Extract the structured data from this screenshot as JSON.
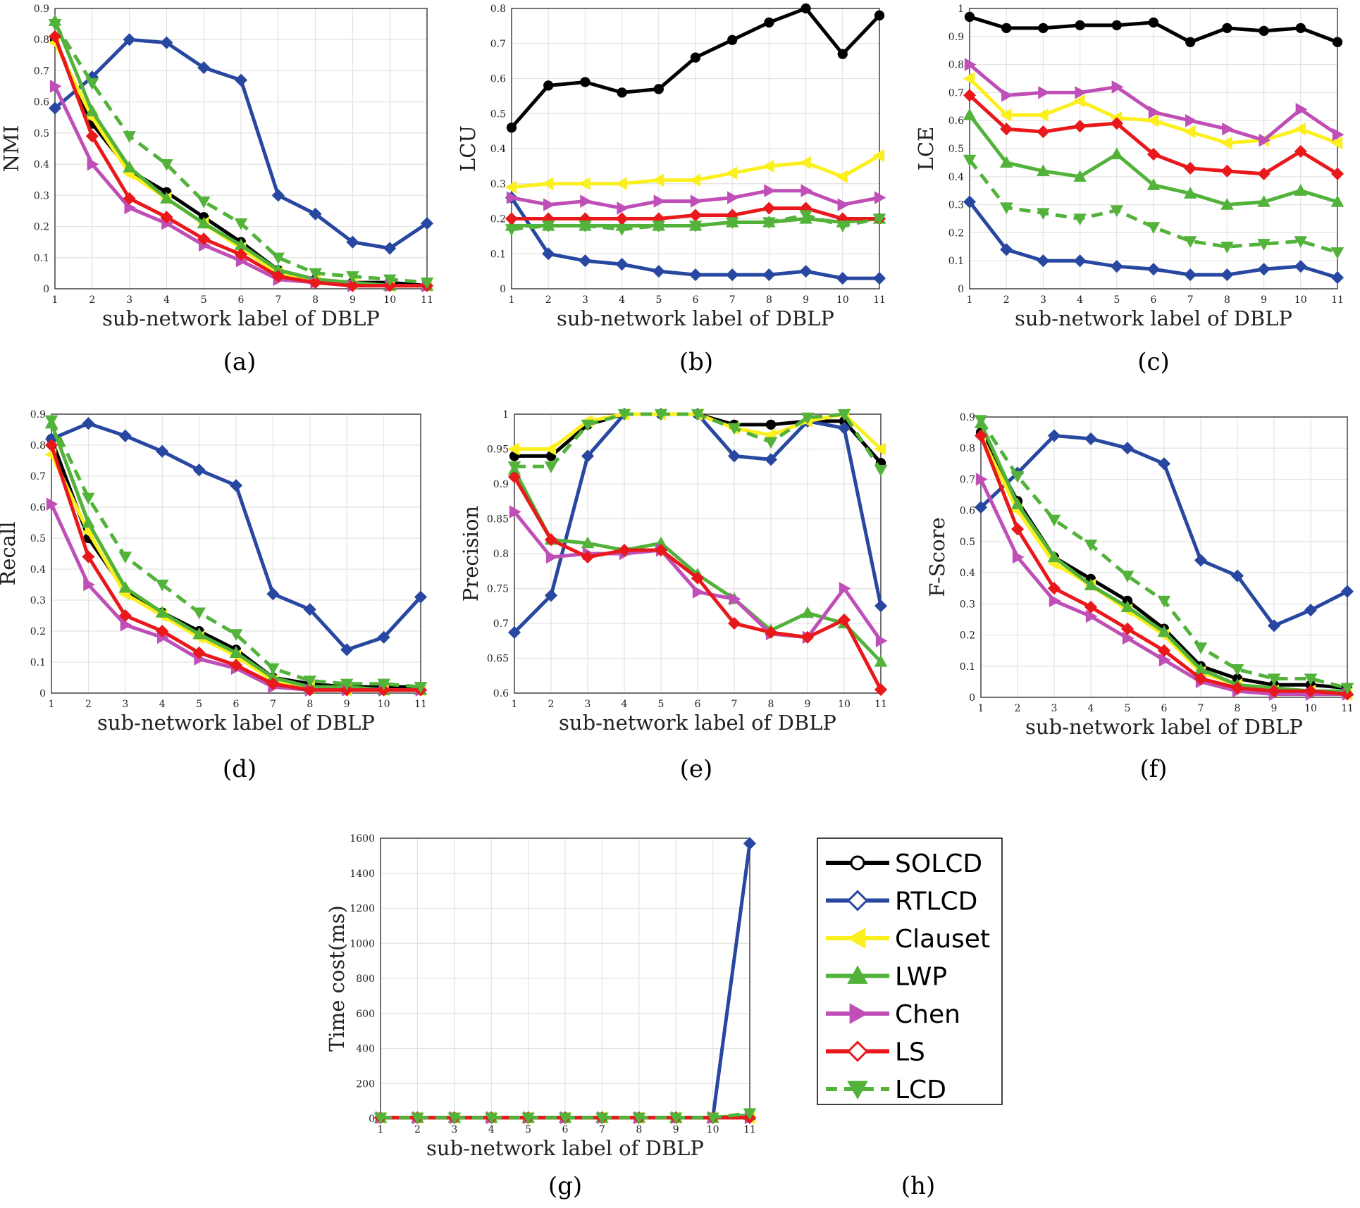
{
  "series_styles": {
    "SOLCD": {
      "color": "#000000",
      "marker": "circle",
      "dash": false
    },
    "RTLCD": {
      "color": "#2747a0",
      "marker": "diamond",
      "dash": false
    },
    "Clauset": {
      "color": "#fbef1e",
      "marker": "triangle-left",
      "dash": false
    },
    "LWP": {
      "color": "#52b23a",
      "marker": "triangle-up",
      "dash": false
    },
    "Chen": {
      "color": "#bf4fb6",
      "marker": "triangle-right",
      "dash": false
    },
    "LS": {
      "color": "#e8181b",
      "marker": "diamond",
      "dash": false
    },
    "LCD": {
      "color": "#52b23a",
      "marker": "triangle-down",
      "dash": true
    }
  },
  "legend": {
    "entries": [
      "SOLCD",
      "RTLCD",
      "Clauset",
      "LWP",
      "Chen",
      "LS",
      "LCD"
    ]
  },
  "panel_labels": {
    "h": "(h)"
  },
  "chart_data": [
    {
      "id": "a",
      "type": "line",
      "caption": "(a)",
      "xlabel": "sub-network label of DBLP",
      "ylabel": "NMI",
      "x": [
        1,
        2,
        3,
        4,
        5,
        6,
        7,
        8,
        9,
        10,
        11
      ],
      "ylim": [
        0,
        0.9
      ],
      "yticks": [
        0,
        0.1,
        0.2,
        0.3,
        0.4,
        0.5,
        0.6,
        0.7,
        0.8,
        0.9
      ],
      "ytick_labels": [
        "0",
        "0.1",
        "0.2",
        "0.3",
        "0.4",
        "0.5",
        "0.6",
        "0.7",
        "0.8",
        "0.9"
      ],
      "series": [
        {
          "name": "SOLCD",
          "values": [
            0.8,
            0.53,
            0.38,
            0.31,
            0.23,
            0.15,
            0.06,
            0.03,
            0.02,
            0.02,
            0.01
          ]
        },
        {
          "name": "RTLCD",
          "values": [
            0.58,
            0.68,
            0.8,
            0.79,
            0.71,
            0.67,
            0.3,
            0.24,
            0.15,
            0.13,
            0.21
          ]
        },
        {
          "name": "Clauset",
          "values": [
            0.79,
            0.55,
            0.37,
            0.29,
            0.21,
            0.13,
            0.05,
            0.03,
            0.02,
            0.01,
            0.01
          ]
        },
        {
          "name": "LWP",
          "values": [
            0.86,
            0.57,
            0.39,
            0.29,
            0.21,
            0.14,
            0.06,
            0.03,
            0.02,
            0.01,
            0.01
          ]
        },
        {
          "name": "Chen",
          "values": [
            0.65,
            0.4,
            0.26,
            0.21,
            0.14,
            0.09,
            0.03,
            0.02,
            0.01,
            0.01,
            0.01
          ]
        },
        {
          "name": "LS",
          "values": [
            0.81,
            0.49,
            0.29,
            0.23,
            0.16,
            0.11,
            0.04,
            0.02,
            0.01,
            0.01,
            0.01
          ]
        },
        {
          "name": "LCD",
          "values": [
            0.85,
            0.66,
            0.49,
            0.4,
            0.28,
            0.21,
            0.1,
            0.05,
            0.04,
            0.03,
            0.02
          ]
        }
      ]
    },
    {
      "id": "b",
      "type": "line",
      "caption": "(b)",
      "xlabel": "sub-network label of DBLP",
      "ylabel": "LCU",
      "x": [
        1,
        2,
        3,
        4,
        5,
        6,
        7,
        8,
        9,
        10,
        11
      ],
      "ylim": [
        0,
        0.8
      ],
      "yticks": [
        0,
        0.1,
        0.2,
        0.3,
        0.4,
        0.5,
        0.6,
        0.7,
        0.8
      ],
      "ytick_labels": [
        "0",
        "0.1",
        "0.2",
        "0.3",
        "0.4",
        "0.5",
        "0.6",
        "0.7",
        "0.8"
      ],
      "series": [
        {
          "name": "SOLCD",
          "values": [
            0.46,
            0.58,
            0.59,
            0.56,
            0.57,
            0.66,
            0.71,
            0.76,
            0.8,
            0.67,
            0.78
          ]
        },
        {
          "name": "RTLCD",
          "values": [
            0.26,
            0.1,
            0.08,
            0.07,
            0.05,
            0.04,
            0.04,
            0.04,
            0.05,
            0.03,
            0.03
          ]
        },
        {
          "name": "Clauset",
          "values": [
            0.29,
            0.3,
            0.3,
            0.3,
            0.31,
            0.31,
            0.33,
            0.35,
            0.36,
            0.32,
            0.38
          ]
        },
        {
          "name": "LWP",
          "values": [
            0.18,
            0.18,
            0.18,
            0.18,
            0.18,
            0.18,
            0.19,
            0.19,
            0.2,
            0.19,
            0.2
          ]
        },
        {
          "name": "Chen",
          "values": [
            0.26,
            0.24,
            0.25,
            0.23,
            0.25,
            0.25,
            0.26,
            0.28,
            0.28,
            0.24,
            0.26
          ]
        },
        {
          "name": "LS",
          "values": [
            0.2,
            0.2,
            0.2,
            0.2,
            0.2,
            0.21,
            0.21,
            0.23,
            0.23,
            0.2,
            0.2
          ]
        },
        {
          "name": "LCD",
          "values": [
            0.17,
            0.18,
            0.18,
            0.17,
            0.18,
            0.18,
            0.19,
            0.19,
            0.21,
            0.18,
            0.2
          ]
        }
      ]
    },
    {
      "id": "c",
      "type": "line",
      "caption": "(c)",
      "xlabel": "sub-network label of DBLP",
      "ylabel": "LCE",
      "x": [
        1,
        2,
        3,
        4,
        5,
        6,
        7,
        8,
        9,
        10,
        11
      ],
      "ylim": [
        0,
        1
      ],
      "yticks": [
        0,
        0.1,
        0.2,
        0.3,
        0.4,
        0.5,
        0.6,
        0.7,
        0.8,
        0.9,
        1
      ],
      "ytick_labels": [
        "0",
        "0.1",
        "0.2",
        "0.3",
        "0.4",
        "0.5",
        "0.6",
        "0.7",
        "0.8",
        "0.9",
        "1"
      ],
      "series": [
        {
          "name": "SOLCD",
          "values": [
            0.97,
            0.93,
            0.93,
            0.94,
            0.94,
            0.95,
            0.88,
            0.93,
            0.92,
            0.93,
            0.88
          ]
        },
        {
          "name": "RTLCD",
          "values": [
            0.31,
            0.14,
            0.1,
            0.1,
            0.08,
            0.07,
            0.05,
            0.05,
            0.07,
            0.08,
            0.04
          ]
        },
        {
          "name": "Clauset",
          "values": [
            0.75,
            0.62,
            0.62,
            0.67,
            0.61,
            0.6,
            0.56,
            0.52,
            0.53,
            0.57,
            0.52
          ]
        },
        {
          "name": "LWP",
          "values": [
            0.62,
            0.45,
            0.42,
            0.4,
            0.48,
            0.37,
            0.34,
            0.3,
            0.31,
            0.35,
            0.31
          ]
        },
        {
          "name": "Chen",
          "values": [
            0.8,
            0.69,
            0.7,
            0.7,
            0.72,
            0.63,
            0.6,
            0.57,
            0.53,
            0.64,
            0.55
          ]
        },
        {
          "name": "LS",
          "values": [
            0.69,
            0.57,
            0.56,
            0.58,
            0.59,
            0.48,
            0.43,
            0.42,
            0.41,
            0.49,
            0.41
          ]
        },
        {
          "name": "LCD",
          "values": [
            0.46,
            0.29,
            0.27,
            0.25,
            0.28,
            0.22,
            0.17,
            0.15,
            0.16,
            0.17,
            0.13
          ]
        }
      ]
    },
    {
      "id": "d",
      "type": "line",
      "caption": "(d)",
      "xlabel": "sub-network label of DBLP",
      "ylabel": "Recall",
      "x": [
        1,
        2,
        3,
        4,
        5,
        6,
        7,
        8,
        9,
        10,
        11
      ],
      "ylim": [
        0,
        0.9
      ],
      "yticks": [
        0,
        0.1,
        0.2,
        0.3,
        0.4,
        0.5,
        0.6,
        0.7,
        0.8,
        0.9
      ],
      "ytick_labels": [
        "0",
        "0.1",
        "0.2",
        "0.3",
        "0.4",
        "0.5",
        "0.6",
        "0.7",
        "0.8",
        "0.9"
      ],
      "series": [
        {
          "name": "SOLCD",
          "values": [
            0.82,
            0.5,
            0.33,
            0.26,
            0.2,
            0.14,
            0.05,
            0.03,
            0.02,
            0.02,
            0.02
          ]
        },
        {
          "name": "RTLCD",
          "values": [
            0.82,
            0.87,
            0.83,
            0.78,
            0.72,
            0.67,
            0.32,
            0.27,
            0.14,
            0.18,
            0.31
          ]
        },
        {
          "name": "Clauset",
          "values": [
            0.77,
            0.52,
            0.32,
            0.25,
            0.18,
            0.12,
            0.04,
            0.02,
            0.01,
            0.01,
            0.01
          ]
        },
        {
          "name": "LWP",
          "values": [
            0.87,
            0.55,
            0.34,
            0.26,
            0.19,
            0.13,
            0.05,
            0.02,
            0.02,
            0.01,
            0.01
          ]
        },
        {
          "name": "Chen",
          "values": [
            0.61,
            0.35,
            0.22,
            0.18,
            0.11,
            0.08,
            0.02,
            0.01,
            0.01,
            0.01,
            0.01
          ]
        },
        {
          "name": "LS",
          "values": [
            0.8,
            0.44,
            0.25,
            0.2,
            0.13,
            0.09,
            0.03,
            0.01,
            0.01,
            0.01,
            0.01
          ]
        },
        {
          "name": "LCD",
          "values": [
            0.88,
            0.63,
            0.44,
            0.35,
            0.26,
            0.19,
            0.08,
            0.04,
            0.03,
            0.03,
            0.02
          ]
        }
      ]
    },
    {
      "id": "e",
      "type": "line",
      "caption": "(e)",
      "xlabel": "sub-network label of DBLP",
      "ylabel": "Precision",
      "x": [
        1,
        2,
        3,
        4,
        5,
        6,
        7,
        8,
        9,
        10,
        11
      ],
      "ylim": [
        0.6,
        1
      ],
      "yticks": [
        0.6,
        0.65,
        0.7,
        0.75,
        0.8,
        0.85,
        0.9,
        0.95,
        1
      ],
      "ytick_labels": [
        "0.6",
        "0.65",
        "0.7",
        "0.75",
        "0.8",
        "0.85",
        "0.9",
        "0.95",
        "1"
      ],
      "series": [
        {
          "name": "SOLCD",
          "values": [
            0.94,
            0.94,
            0.985,
            1.0,
            1.0,
            1.0,
            0.985,
            0.985,
            0.99,
            0.99,
            0.93
          ]
        },
        {
          "name": "RTLCD",
          "values": [
            0.687,
            0.74,
            0.94,
            1.0,
            1.0,
            1.0,
            0.94,
            0.935,
            0.99,
            0.98,
            0.725
          ]
        },
        {
          "name": "Clauset",
          "values": [
            0.95,
            0.95,
            0.99,
            1.0,
            1.0,
            1.0,
            0.98,
            0.97,
            0.99,
            1.0,
            0.95
          ]
        },
        {
          "name": "LWP",
          "values": [
            0.92,
            0.82,
            0.815,
            0.805,
            0.815,
            0.77,
            0.735,
            0.69,
            0.715,
            0.7,
            0.645
          ]
        },
        {
          "name": "Chen",
          "values": [
            0.86,
            0.795,
            0.8,
            0.8,
            0.805,
            0.745,
            0.735,
            0.685,
            0.68,
            0.75,
            0.675
          ]
        },
        {
          "name": "LS",
          "values": [
            0.91,
            0.82,
            0.795,
            0.805,
            0.805,
            0.765,
            0.7,
            0.687,
            0.68,
            0.705,
            0.605
          ]
        },
        {
          "name": "LCD",
          "values": [
            0.925,
            0.925,
            0.985,
            1.0,
            1.0,
            1.0,
            0.98,
            0.96,
            0.995,
            1.0,
            0.92
          ]
        }
      ]
    },
    {
      "id": "f",
      "type": "line",
      "caption": "(f)",
      "xlabel": "sub-network label of DBLP",
      "ylabel": "F-Score",
      "x": [
        1,
        2,
        3,
        4,
        5,
        6,
        7,
        8,
        9,
        10,
        11
      ],
      "ylim": [
        0,
        0.9
      ],
      "yticks": [
        0,
        0.1,
        0.2,
        0.3,
        0.4,
        0.5,
        0.6,
        0.7,
        0.8,
        0.9
      ],
      "ytick_labels": [
        "0",
        "0.1",
        "0.2",
        "0.3",
        "0.4",
        "0.5",
        "0.6",
        "0.7",
        "0.8",
        "0.9"
      ],
      "series": [
        {
          "name": "SOLCD",
          "values": [
            0.85,
            0.63,
            0.45,
            0.38,
            0.31,
            0.22,
            0.1,
            0.06,
            0.04,
            0.04,
            0.03
          ]
        },
        {
          "name": "RTLCD",
          "values": [
            0.61,
            0.72,
            0.84,
            0.83,
            0.8,
            0.75,
            0.44,
            0.39,
            0.23,
            0.28,
            0.34
          ]
        },
        {
          "name": "Clauset",
          "values": [
            0.84,
            0.6,
            0.43,
            0.36,
            0.28,
            0.2,
            0.08,
            0.04,
            0.02,
            0.02,
            0.01
          ]
        },
        {
          "name": "LWP",
          "values": [
            0.88,
            0.62,
            0.45,
            0.36,
            0.29,
            0.21,
            0.09,
            0.04,
            0.03,
            0.02,
            0.02
          ]
        },
        {
          "name": "Chen",
          "values": [
            0.7,
            0.45,
            0.31,
            0.26,
            0.19,
            0.12,
            0.05,
            0.02,
            0.01,
            0.01,
            0.01
          ]
        },
        {
          "name": "LS",
          "values": [
            0.84,
            0.54,
            0.35,
            0.29,
            0.22,
            0.15,
            0.06,
            0.03,
            0.02,
            0.02,
            0.01
          ]
        },
        {
          "name": "LCD",
          "values": [
            0.89,
            0.71,
            0.57,
            0.49,
            0.39,
            0.31,
            0.16,
            0.09,
            0.06,
            0.06,
            0.03
          ]
        }
      ]
    },
    {
      "id": "g",
      "type": "line",
      "caption": "(g)",
      "xlabel": "sub-network label of DBLP",
      "ylabel": "Time cost(ms)",
      "x": [
        1,
        2,
        3,
        4,
        5,
        6,
        7,
        8,
        9,
        10,
        11
      ],
      "ylim": [
        0,
        1600
      ],
      "yticks": [
        0,
        200,
        400,
        600,
        800,
        1000,
        1200,
        1400,
        1600
      ],
      "ytick_labels": [
        "0",
        "200",
        "400",
        "600",
        "800",
        "1000",
        "1200",
        "1400",
        "1600"
      ],
      "series": [
        {
          "name": "SOLCD",
          "values": [
            5,
            5,
            5,
            5,
            5,
            5,
            5,
            5,
            5,
            5,
            5
          ]
        },
        {
          "name": "RTLCD",
          "values": [
            5,
            5,
            5,
            5,
            5,
            5,
            5,
            5,
            5,
            5,
            1570
          ]
        },
        {
          "name": "Clauset",
          "values": [
            5,
            5,
            5,
            5,
            5,
            5,
            5,
            5,
            5,
            5,
            5
          ]
        },
        {
          "name": "LWP",
          "values": [
            5,
            5,
            5,
            5,
            5,
            5,
            5,
            5,
            5,
            5,
            20
          ]
        },
        {
          "name": "Chen",
          "values": [
            5,
            5,
            5,
            5,
            5,
            5,
            5,
            5,
            5,
            5,
            5
          ]
        },
        {
          "name": "LS",
          "values": [
            5,
            5,
            5,
            5,
            5,
            5,
            5,
            5,
            5,
            5,
            5
          ]
        },
        {
          "name": "LCD",
          "values": [
            5,
            5,
            5,
            5,
            5,
            5,
            5,
            5,
            5,
            5,
            30
          ]
        }
      ]
    }
  ]
}
